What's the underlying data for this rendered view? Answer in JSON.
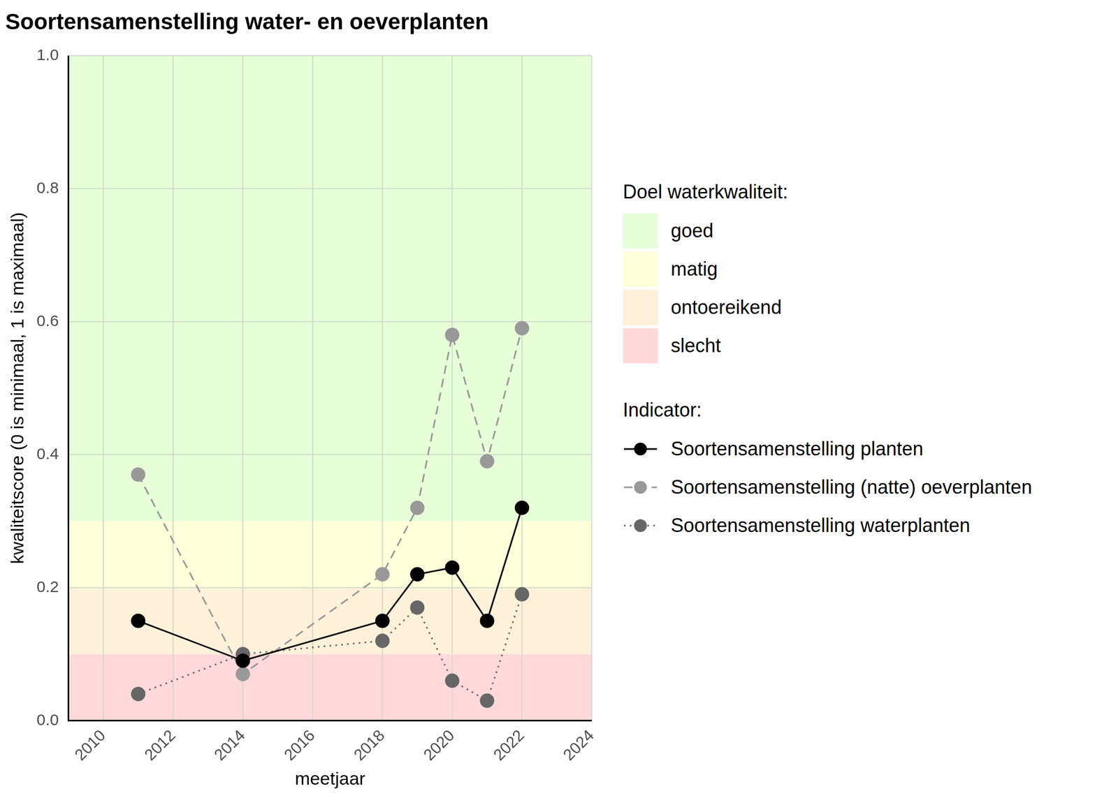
{
  "chart_data": {
    "type": "line",
    "title": "Soortensamenstelling water- en oeverplanten",
    "x_label": "meetjaar",
    "y_label": "kwaliteitscore (0 is minimaal, 1 is maximaal)",
    "x": [
      2011,
      2014,
      2018,
      2019,
      2020,
      2021,
      2022
    ],
    "series": [
      {
        "name": "Soortensamenstelling planten",
        "color": "#000000",
        "line_style": "solid",
        "marker": "circle",
        "values": [
          0.15,
          0.09,
          0.15,
          0.22,
          0.23,
          0.15,
          0.32
        ]
      },
      {
        "name": "Soortensamenstelling (natte) oeverplanten",
        "color": "#999999",
        "line_style": "dashed",
        "marker": "circle",
        "values": [
          0.37,
          0.07,
          0.22,
          0.32,
          0.58,
          0.39,
          0.59
        ]
      },
      {
        "name": "Soortensamenstelling waterplanten",
        "color": "#666666",
        "line_style": "dotted",
        "marker": "circle",
        "values": [
          0.04,
          0.1,
          0.12,
          0.17,
          0.06,
          0.03,
          0.19
        ]
      }
    ],
    "xlim": [
      2009,
      2024
    ],
    "xticks": [
      2010,
      2012,
      2014,
      2016,
      2018,
      2020,
      2022,
      2024
    ],
    "ylim": [
      0,
      1
    ],
    "yticks": [
      {
        "value": 0,
        "label": "0.0"
      },
      0.2,
      0.4,
      0.6,
      0.8,
      {
        "value": 1,
        "label": "1.0"
      }
    ],
    "grid": true,
    "legend": "right",
    "band_legend_title": "Doel waterkwaliteit:",
    "series_legend_title": "Indicator:",
    "bands": [
      {
        "name": "goed",
        "from": 0.3,
        "to": 1,
        "color": "#e6ffd9"
      },
      {
        "name": "matig",
        "from": 0.2,
        "to": 0.3,
        "color": "#ffffd9"
      },
      {
        "name": "ontoereikend",
        "from": 0.1,
        "to": 0.2,
        "color": "#fff0d9"
      },
      {
        "name": "slecht",
        "from": 0,
        "to": 0.1,
        "color": "#ffd9d9"
      }
    ]
  }
}
